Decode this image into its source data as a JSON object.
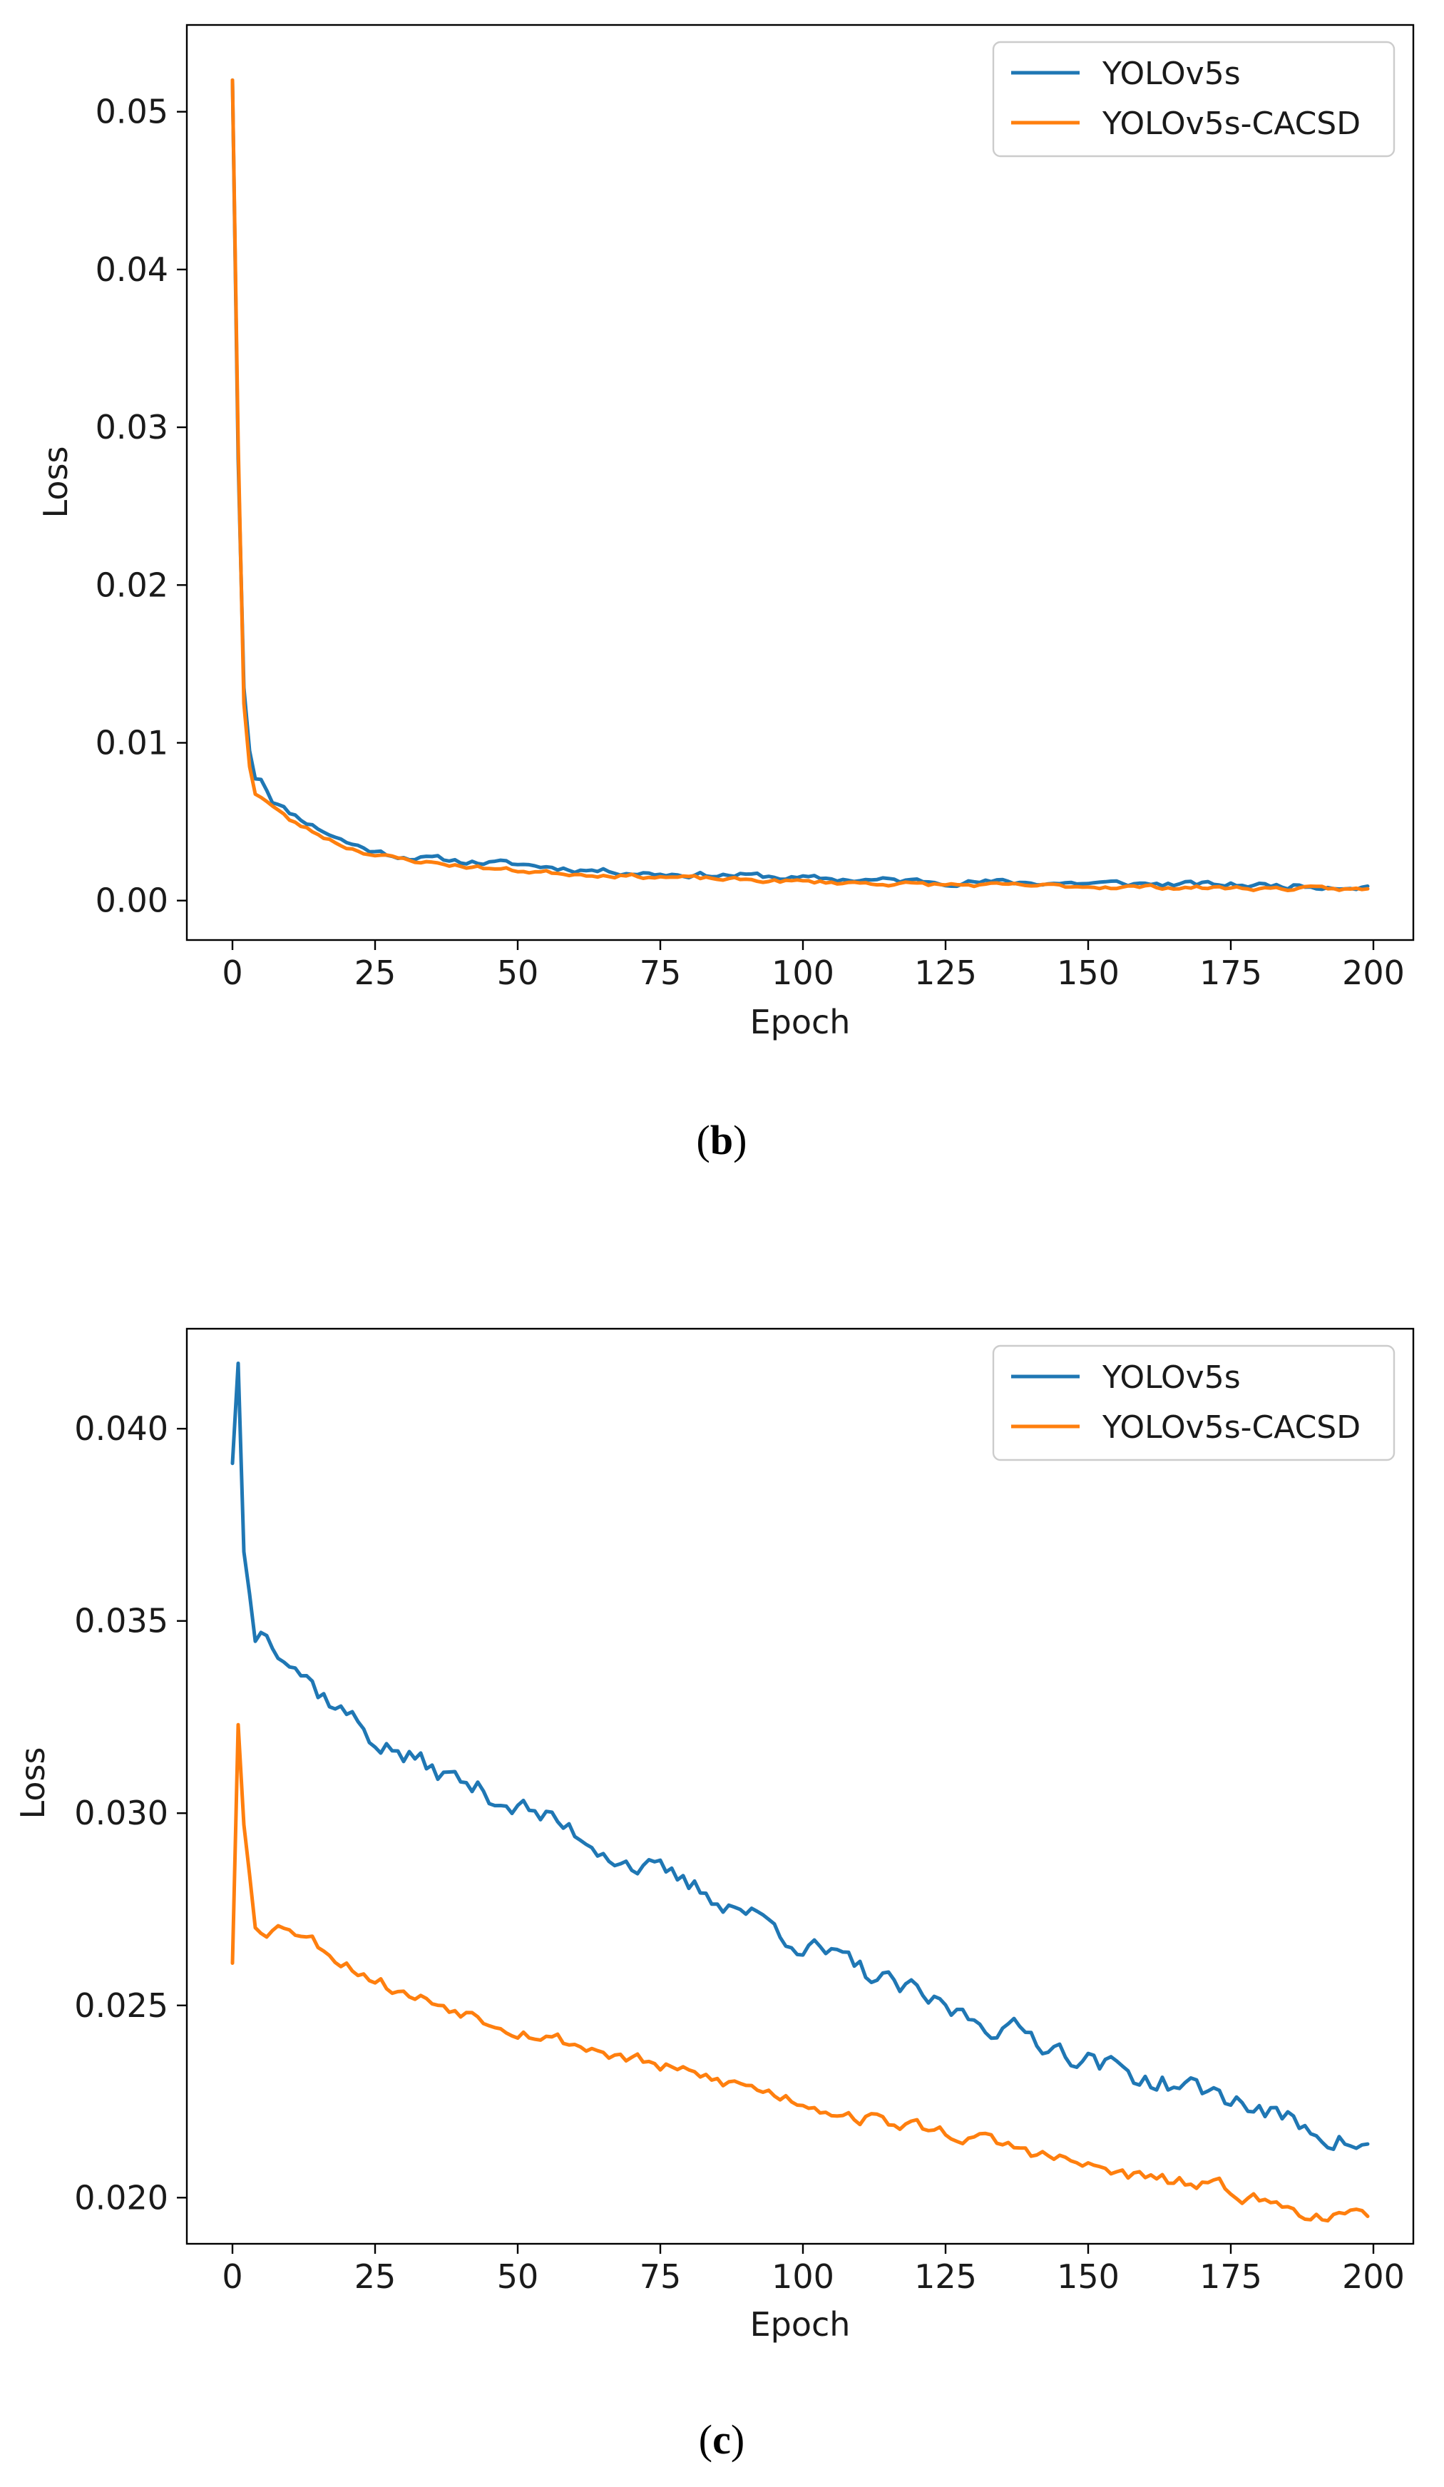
{
  "chart_data": [
    {
      "type": "line",
      "id": "b",
      "caption_letter": "b",
      "caption_open": "(",
      "caption_close": ")",
      "xlabel": "Epoch",
      "ylabel": "Loss",
      "xlim": [
        -8,
        207
      ],
      "ylim": [
        -0.0025,
        0.0555
      ],
      "xticks": [
        0,
        25,
        50,
        75,
        100,
        125,
        150,
        175,
        200
      ],
      "xtick_labels": [
        "0",
        "25",
        "50",
        "75",
        "100",
        "125",
        "150",
        "175",
        "200"
      ],
      "yticks": [
        0.0,
        0.01,
        0.02,
        0.03,
        0.04,
        0.05
      ],
      "ytick_labels": [
        "0.00",
        "0.01",
        "0.02",
        "0.03",
        "0.04",
        "0.05"
      ],
      "legend_position": "top-right",
      "series": [
        {
          "name": "YOLOv5s",
          "color": "#1f77b4",
          "keypoints": [
            [
              0,
              0.052
            ],
            [
              1,
              0.028
            ],
            [
              2,
              0.0135
            ],
            [
              3,
              0.0095
            ],
            [
              4,
              0.0078
            ],
            [
              5,
              0.0078
            ],
            [
              7,
              0.0064
            ],
            [
              10,
              0.0056
            ],
            [
              15,
              0.0046
            ],
            [
              20,
              0.0037
            ],
            [
              25,
              0.0031
            ],
            [
              30,
              0.0028
            ],
            [
              40,
              0.0025
            ],
            [
              50,
              0.0023
            ],
            [
              60,
              0.002
            ],
            [
              75,
              0.0017
            ],
            [
              90,
              0.0016
            ],
            [
              100,
              0.0014
            ],
            [
              125,
              0.0012
            ],
            [
              150,
              0.0011
            ],
            [
              175,
              0.001
            ],
            [
              199,
              0.0009
            ]
          ],
          "noise": 0.00016,
          "seed": 11
        },
        {
          "name": "YOLOv5s-CACSD",
          "color": "#ff7f0e",
          "keypoints": [
            [
              0,
              0.052
            ],
            [
              1,
              0.029
            ],
            [
              2,
              0.0125
            ],
            [
              3,
              0.0085
            ],
            [
              4,
              0.0068
            ],
            [
              5,
              0.0066
            ],
            [
              7,
              0.006
            ],
            [
              10,
              0.0051
            ],
            [
              15,
              0.0042
            ],
            [
              20,
              0.0034
            ],
            [
              25,
              0.0029
            ],
            [
              30,
              0.0026
            ],
            [
              40,
              0.0022
            ],
            [
              50,
              0.0019
            ],
            [
              60,
              0.0017
            ],
            [
              75,
              0.0015
            ],
            [
              90,
              0.0013
            ],
            [
              100,
              0.0012
            ],
            [
              125,
              0.001
            ],
            [
              150,
              0.0009
            ],
            [
              175,
              0.0008
            ],
            [
              199,
              0.0007
            ]
          ],
          "noise": 0.00011,
          "seed": 23
        }
      ]
    },
    {
      "type": "line",
      "id": "c",
      "caption_letter": "c",
      "caption_open": "(",
      "caption_close": ")",
      "xlabel": "Epoch",
      "ylabel": "Loss",
      "xlim": [
        -8,
        207
      ],
      "ylim": [
        0.0188,
        0.0426
      ],
      "xticks": [
        0,
        25,
        50,
        75,
        100,
        125,
        150,
        175,
        200
      ],
      "xtick_labels": [
        "0",
        "25",
        "50",
        "75",
        "100",
        "125",
        "150",
        "175",
        "200"
      ],
      "yticks": [
        0.02,
        0.025,
        0.03,
        0.035,
        0.04
      ],
      "ytick_labels": [
        "0.020",
        "0.025",
        "0.030",
        "0.035",
        "0.040"
      ],
      "legend_position": "top-right",
      "series": [
        {
          "name": "YOLOv5s",
          "color": "#1f77b4",
          "keypoints": [
            [
              0,
              0.0391
            ],
            [
              1,
              0.0417
            ],
            [
              2,
              0.0368
            ],
            [
              4,
              0.0346
            ],
            [
              6,
              0.0348
            ],
            [
              10,
              0.0341
            ],
            [
              15,
              0.0332
            ],
            [
              20,
              0.0326
            ],
            [
              25,
              0.0319
            ],
            [
              30,
              0.0315
            ],
            [
              40,
              0.0308
            ],
            [
              50,
              0.0302
            ],
            [
              60,
              0.0295
            ],
            [
              70,
              0.0287
            ],
            [
              80,
              0.0281
            ],
            [
              90,
              0.0275
            ],
            [
              100,
              0.0266
            ],
            [
              110,
              0.0259
            ],
            [
              125,
              0.0249
            ],
            [
              140,
              0.0242
            ],
            [
              150,
              0.0236
            ],
            [
              160,
              0.0231
            ],
            [
              175,
              0.0226
            ],
            [
              185,
              0.022
            ],
            [
              199,
              0.0213
            ]
          ],
          "noise": 0.00026,
          "seed": 37
        },
        {
          "name": "YOLOv5s-CACSD",
          "color": "#ff7f0e",
          "keypoints": [
            [
              0,
              0.0261
            ],
            [
              1,
              0.0323
            ],
            [
              2,
              0.0297
            ],
            [
              4,
              0.0271
            ],
            [
              6,
              0.027
            ],
            [
              10,
              0.0271
            ],
            [
              15,
              0.0266
            ],
            [
              20,
              0.0261
            ],
            [
              25,
              0.0257
            ],
            [
              30,
              0.0253
            ],
            [
              40,
              0.0249
            ],
            [
              50,
              0.0244
            ],
            [
              60,
              0.024
            ],
            [
              70,
              0.0236
            ],
            [
              80,
              0.0232
            ],
            [
              90,
              0.0229
            ],
            [
              100,
              0.0225
            ],
            [
              110,
              0.0221
            ],
            [
              125,
              0.0217
            ],
            [
              140,
              0.0212
            ],
            [
              150,
              0.0208
            ],
            [
              160,
              0.0205
            ],
            [
              175,
              0.0202
            ],
            [
              185,
              0.0197
            ],
            [
              199,
              0.0194
            ]
          ],
          "noise": 0.00016,
          "seed": 53
        }
      ]
    }
  ]
}
